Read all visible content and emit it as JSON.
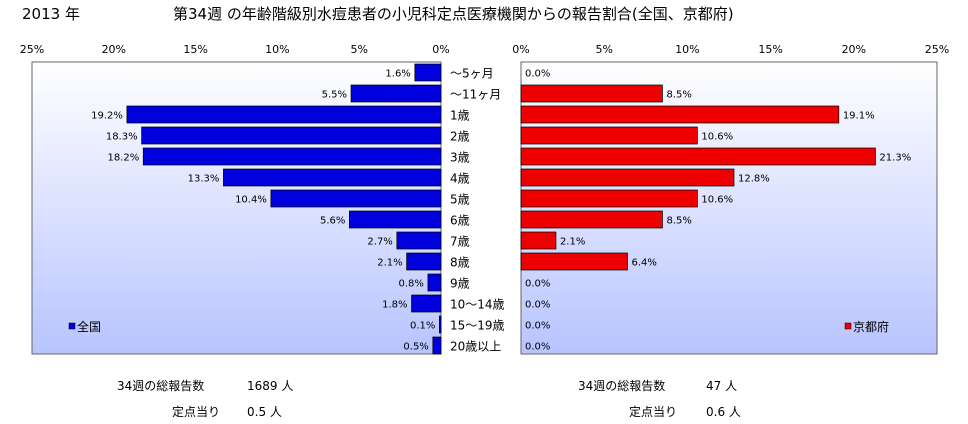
{
  "header": {
    "year": "2013 年",
    "title": "第34週 の年齢階級別水痘患者の小児科定点医療機関からの報告割合(全国、京都府)"
  },
  "colors": {
    "national": "#0000dd",
    "kyoto": "#ee0000",
    "panel_top": "#ffffff",
    "panel_bottom": "#b8c4ff"
  },
  "chart_data": [
    {
      "type": "bar",
      "orientation": "horizontal",
      "direction": "leftward",
      "categories": [
        "～5ヶ月",
        "～11ヶ月",
        "1歳",
        "2歳",
        "3歳",
        "4歳",
        "5歳",
        "6歳",
        "7歳",
        "8歳",
        "9歳",
        "10～14歳",
        "15～19歳",
        "20歳以上"
      ],
      "series": [
        {
          "name": "全国",
          "values": [
            1.6,
            5.5,
            19.2,
            18.3,
            18.2,
            13.3,
            10.4,
            5.6,
            2.7,
            2.1,
            0.8,
            1.8,
            0.1,
            0.5
          ]
        }
      ],
      "data_labels": [
        "1.6%",
        "5.5%",
        "19.2%",
        "18.3%",
        "18.2%",
        "13.3%",
        "10.4%",
        "5.6%",
        "2.7%",
        "2.1%",
        "0.8%",
        "1.8%",
        "0.1%",
        "0.5%"
      ],
      "xlim": [
        0,
        25
      ],
      "ticks": [
        "25%",
        "20%",
        "15%",
        "10%",
        "5%",
        "0%"
      ],
      "legend": "bottom-left",
      "grid": false
    },
    {
      "type": "bar",
      "orientation": "horizontal",
      "direction": "rightward",
      "categories": [
        "～5ヶ月",
        "～11ヶ月",
        "1歳",
        "2歳",
        "3歳",
        "4歳",
        "5歳",
        "6歳",
        "7歳",
        "8歳",
        "9歳",
        "10～14歳",
        "15～19歳",
        "20歳以上"
      ],
      "series": [
        {
          "name": "京都府",
          "values": [
            0.0,
            8.5,
            19.1,
            10.6,
            21.3,
            12.8,
            10.6,
            8.5,
            2.1,
            6.4,
            0.0,
            0.0,
            0.0,
            0.0
          ]
        }
      ],
      "data_labels": [
        "0.0%",
        "8.5%",
        "19.1%",
        "10.6%",
        "21.3%",
        "12.8%",
        "10.6%",
        "8.5%",
        "2.1%",
        "6.4%",
        "0.0%",
        "0.0%",
        "0.0%",
        "0.0%"
      ],
      "xlim": [
        0,
        25
      ],
      "ticks": [
        "0%",
        "5%",
        "10%",
        "15%",
        "20%",
        "25%"
      ],
      "legend": "bottom-right",
      "grid": false
    }
  ],
  "footer": {
    "left": {
      "total_label": "34週の総報告数",
      "total_value": "1689 人",
      "per_label": "定点当り",
      "per_value": "0.5 人"
    },
    "right": {
      "total_label": "34週の総報告数",
      "total_value": "47 人",
      "per_label": "定点当り",
      "per_value": "0.6 人"
    }
  }
}
